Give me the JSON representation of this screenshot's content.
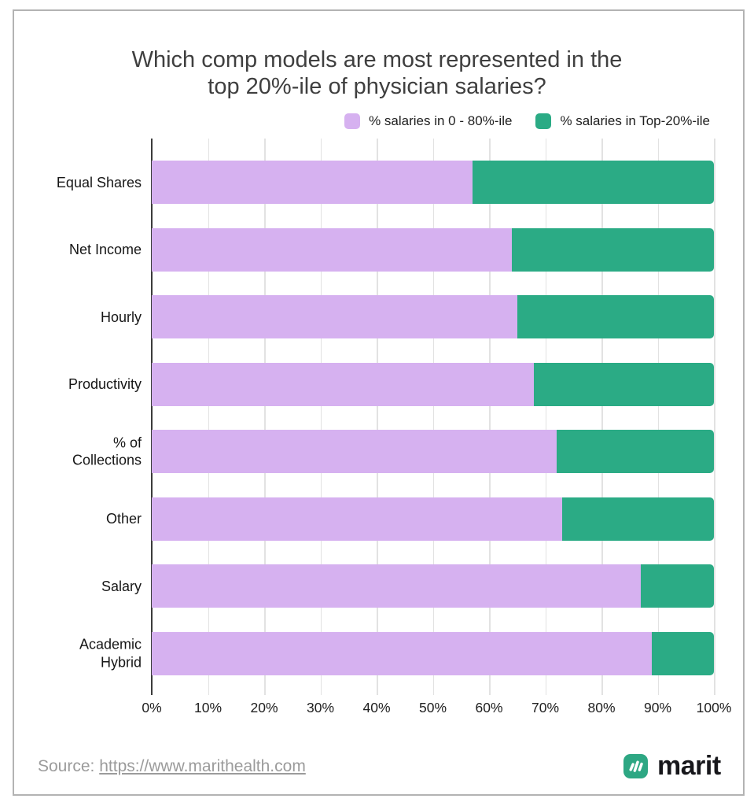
{
  "header": {
    "title_lines": [
      "Which comp models are most represented in the",
      "top 20%-ile of physician salaries?"
    ]
  },
  "chart_data": {
    "type": "bar",
    "orientation": "horizontal",
    "stacked": true,
    "title": "Which comp models are most represented in the top 20%-ile of physician salaries?",
    "categories": [
      "Equal Shares",
      "Net Income",
      "Hourly",
      "Productivity",
      "% of Collections",
      "Other",
      "Salary",
      "Academic Hybrid"
    ],
    "series": [
      {
        "name": "% salaries in 0 - 80%-ile",
        "color": "#d6b1f0",
        "values": [
          57,
          64,
          65,
          68,
          72,
          73,
          87,
          89
        ]
      },
      {
        "name": "% salaries in Top-20%-ile",
        "color": "#2bab85",
        "values": [
          43,
          36,
          35,
          32,
          28,
          27,
          13,
          11
        ]
      }
    ],
    "x_ticks": [
      "0%",
      "10%",
      "20%",
      "30%",
      "40%",
      "50%",
      "60%",
      "70%",
      "80%",
      "90%",
      "100%"
    ],
    "xlim": [
      0,
      100
    ],
    "grid": "vertical",
    "legend_position": "top-right"
  },
  "footer": {
    "source_prefix": "Source: ",
    "source_link": "https://www.marithealth.com",
    "brand": "marit"
  },
  "colors": {
    "bar_purple": "#d6b1f0",
    "bar_green": "#2bab85",
    "axis": "#3b3b3b",
    "gridline": "#e2e2e2",
    "frame_border": "#b3b3b3",
    "title_text": "#3f3f3f",
    "source_text": "#9b9b9b",
    "logo_green": "#2da783",
    "logo_text": "#17171b"
  }
}
